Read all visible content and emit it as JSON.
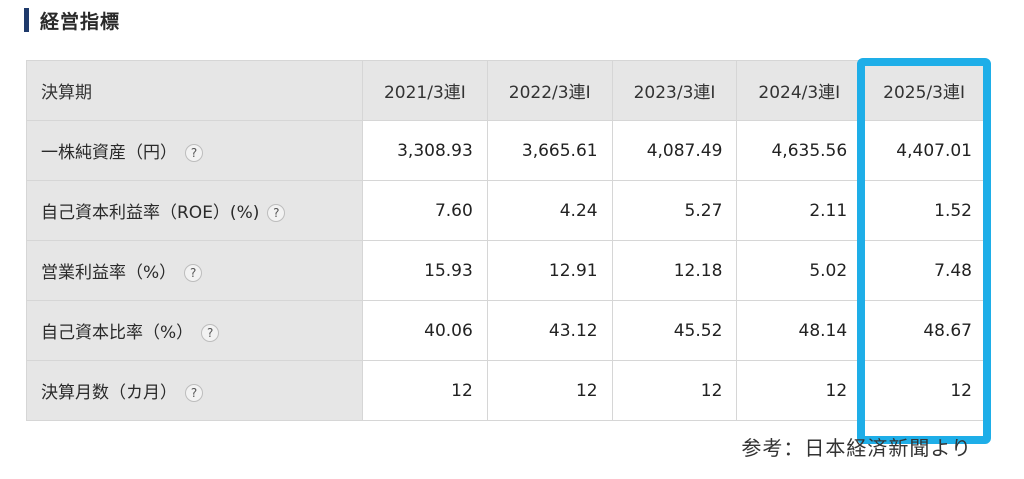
{
  "section": {
    "title": "経営指標"
  },
  "table": {
    "label_header": "決算期",
    "periods": [
      "2021/3連I",
      "2022/3連I",
      "2023/3連I",
      "2024/3連I",
      "2025/3連I"
    ],
    "help_icon_text": "?",
    "rows": [
      {
        "label": "一株純資産（円）",
        "values": [
          "3,308.93",
          "3,665.61",
          "4,087.49",
          "4,635.56",
          "4,407.01"
        ]
      },
      {
        "label": "自己資本利益率（ROE）(%)",
        "values": [
          "7.60",
          "4.24",
          "5.27",
          "2.11",
          "1.52"
        ]
      },
      {
        "label": "営業利益率（%）",
        "values": [
          "15.93",
          "12.91",
          "12.18",
          "5.02",
          "7.48"
        ]
      },
      {
        "label": "自己資本比率（%）",
        "values": [
          "40.06",
          "43.12",
          "45.52",
          "48.14",
          "48.67"
        ]
      },
      {
        "label": "決算月数（カ月）",
        "values": [
          "12",
          "12",
          "12",
          "12",
          "12"
        ]
      }
    ]
  },
  "highlight": {
    "color": "#1eaee8",
    "column": "2025/3連I"
  },
  "source": {
    "text": "参考：日本経済新聞より"
  },
  "icons": {
    "help": "question-circle-icon"
  }
}
